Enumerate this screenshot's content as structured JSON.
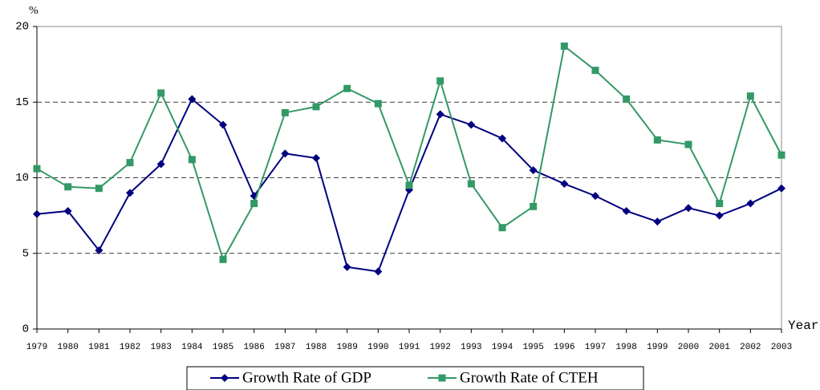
{
  "chart_data": {
    "type": "line",
    "y_label": "%",
    "x_label": "Year",
    "categories": [
      "1979",
      "1980",
      "1981",
      "1982",
      "1983",
      "1984",
      "1985",
      "1986",
      "1987",
      "1988",
      "1989",
      "1990",
      "1991",
      "1992",
      "1993",
      "1994",
      "1995",
      "1996",
      "1997",
      "1998",
      "1999",
      "2000",
      "2001",
      "2002",
      "2003"
    ],
    "series": [
      {
        "name": "Growth Rate of GDP",
        "color": "#000080",
        "marker": "diamond",
        "values": [
          7.6,
          7.8,
          5.2,
          9.0,
          10.9,
          15.2,
          13.5,
          8.8,
          11.6,
          11.3,
          4.1,
          3.8,
          9.2,
          14.2,
          13.5,
          12.6,
          10.5,
          9.6,
          8.8,
          7.8,
          7.1,
          8.0,
          7.5,
          8.3,
          9.3
        ]
      },
      {
        "name": "Growth Rate of CTEH",
        "color": "#339966",
        "marker": "square",
        "values": [
          10.6,
          9.4,
          9.3,
          11.0,
          15.6,
          11.2,
          4.6,
          8.3,
          14.3,
          14.7,
          15.9,
          14.9,
          9.5,
          16.4,
          9.6,
          6.7,
          8.1,
          18.7,
          17.1,
          15.2,
          12.5,
          12.2,
          8.3,
          15.4,
          11.5
        ]
      }
    ],
    "ylim": [
      0,
      20
    ],
    "yticks": [
      0,
      5,
      10,
      15,
      20
    ],
    "grid": true
  }
}
